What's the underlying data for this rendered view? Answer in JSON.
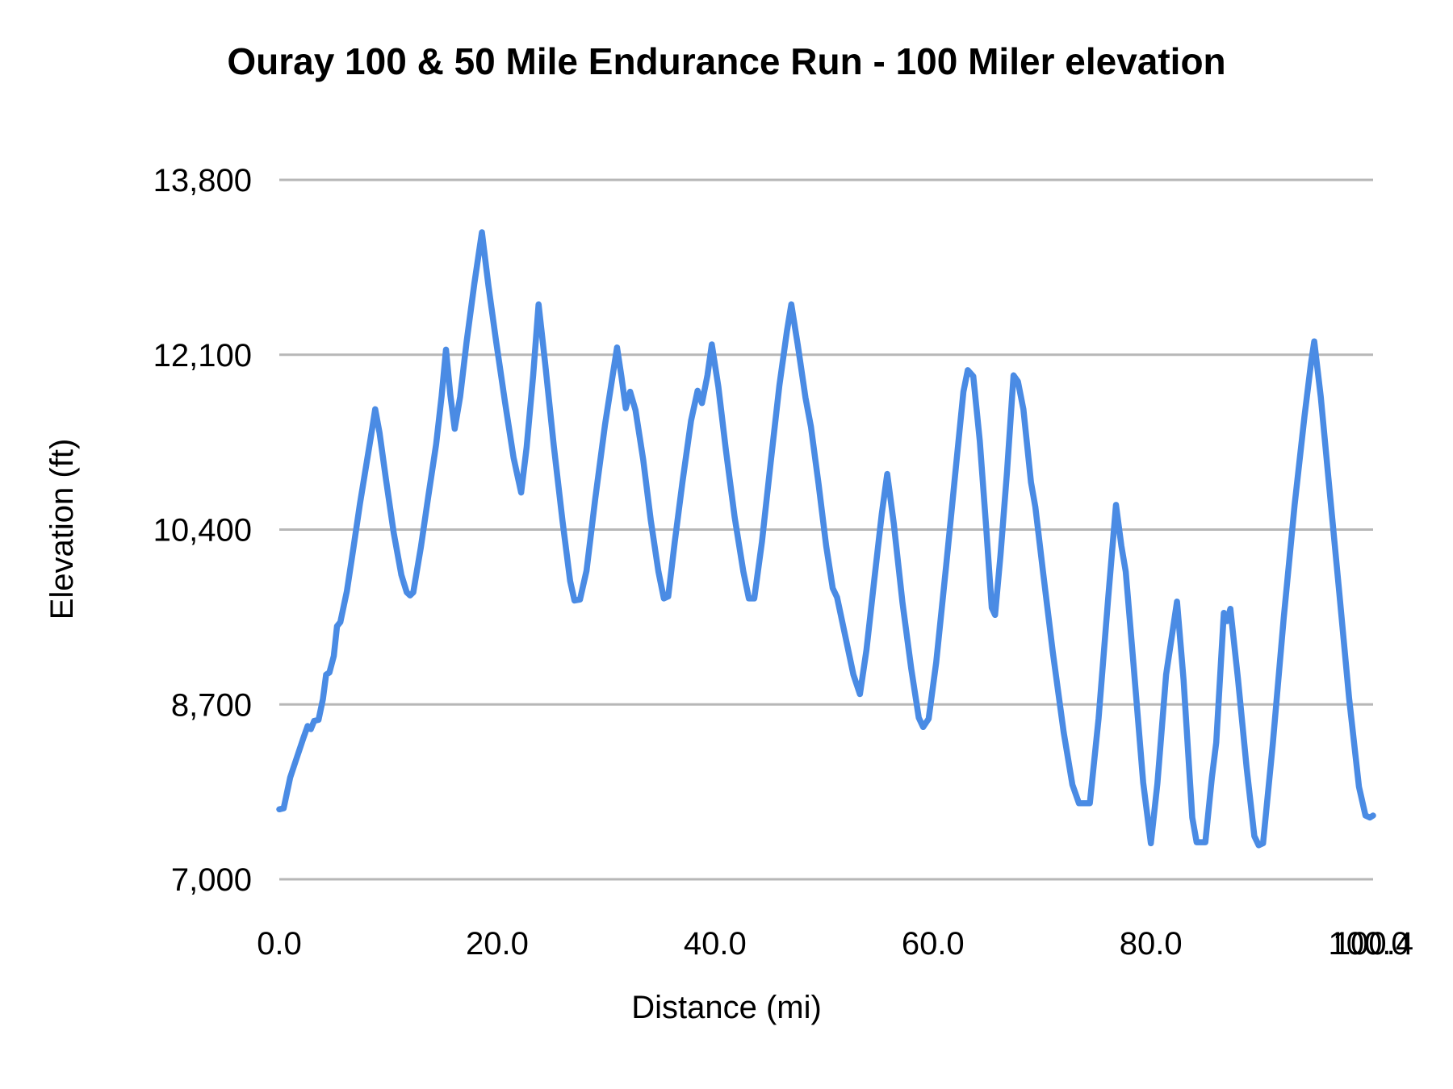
{
  "chart_data": {
    "type": "line",
    "title": "Ouray 100 & 50 Mile Endurance Run - 100 Miler elevation",
    "xlabel": "Distance (mi)",
    "ylabel": "Elevation (ft)",
    "xlim": [
      0,
      100.4
    ],
    "ylim": [
      7000,
      13800
    ],
    "grid": "horizontal",
    "legend": "none",
    "line_color": "#4a8be4",
    "grid_color": "#b7b7b7",
    "text_color": "#000000",
    "yticks": [
      {
        "value": 7000,
        "label": "7,000"
      },
      {
        "value": 8700,
        "label": "8,700"
      },
      {
        "value": 10400,
        "label": "10,400"
      },
      {
        "value": 12100,
        "label": "12,100"
      },
      {
        "value": 13800,
        "label": "13,800"
      }
    ],
    "xticks": [
      {
        "value": 0,
        "label": "0.0"
      },
      {
        "value": 20,
        "label": "20.0"
      },
      {
        "value": 40,
        "label": "40.0"
      },
      {
        "value": 60,
        "label": "60.0"
      },
      {
        "value": 80,
        "label": "80.0"
      },
      {
        "value": 100,
        "label": "100.0"
      },
      {
        "value": 100.4,
        "label": "100.4"
      }
    ],
    "series": [
      {
        "name": "100 Miler elevation",
        "points": [
          [
            0,
            7680
          ],
          [
            0.4,
            7690
          ],
          [
            1,
            7990
          ],
          [
            1.6,
            8180
          ],
          [
            2.2,
            8370
          ],
          [
            2.6,
            8490
          ],
          [
            2.9,
            8460
          ],
          [
            3.2,
            8540
          ],
          [
            3.6,
            8550
          ],
          [
            4,
            8750
          ],
          [
            4.3,
            8990
          ],
          [
            4.6,
            9010
          ],
          [
            5,
            9170
          ],
          [
            5.3,
            9460
          ],
          [
            5.6,
            9500
          ],
          [
            6.2,
            9800
          ],
          [
            6.8,
            10220
          ],
          [
            7.4,
            10650
          ],
          [
            8,
            11040
          ],
          [
            8.4,
            11300
          ],
          [
            8.8,
            11570
          ],
          [
            9.2,
            11340
          ],
          [
            9.8,
            10880
          ],
          [
            10.5,
            10370
          ],
          [
            11.2,
            9960
          ],
          [
            11.7,
            9790
          ],
          [
            12,
            9760
          ],
          [
            12.3,
            9790
          ],
          [
            13,
            10230
          ],
          [
            13.7,
            10740
          ],
          [
            14.4,
            11230
          ],
          [
            14.9,
            11700
          ],
          [
            15.3,
            12150
          ],
          [
            15.7,
            11710
          ],
          [
            16.1,
            11380
          ],
          [
            16.6,
            11690
          ],
          [
            17.2,
            12230
          ],
          [
            17.9,
            12790
          ],
          [
            18.6,
            13290
          ],
          [
            19.2,
            12770
          ],
          [
            19.9,
            12230
          ],
          [
            20.7,
            11650
          ],
          [
            21.5,
            11100
          ],
          [
            22.2,
            10760
          ],
          [
            22.7,
            11200
          ],
          [
            23.3,
            11900
          ],
          [
            23.8,
            12590
          ],
          [
            24.4,
            12020
          ],
          [
            25.2,
            11210
          ],
          [
            26,
            10480
          ],
          [
            26.7,
            9900
          ],
          [
            27.1,
            9710
          ],
          [
            27.6,
            9720
          ],
          [
            28.2,
            10000
          ],
          [
            29,
            10700
          ],
          [
            29.9,
            11420
          ],
          [
            30.6,
            11900
          ],
          [
            31,
            12170
          ],
          [
            31.4,
            11890
          ],
          [
            31.8,
            11580
          ],
          [
            32.2,
            11740
          ],
          [
            32.7,
            11560
          ],
          [
            33.4,
            11080
          ],
          [
            34.1,
            10490
          ],
          [
            34.8,
            9990
          ],
          [
            35.3,
            9730
          ],
          [
            35.7,
            9750
          ],
          [
            36.3,
            10280
          ],
          [
            37,
            10860
          ],
          [
            37.8,
            11460
          ],
          [
            38.4,
            11750
          ],
          [
            38.8,
            11630
          ],
          [
            39.3,
            11900
          ],
          [
            39.7,
            12200
          ],
          [
            40.3,
            11790
          ],
          [
            41,
            11170
          ],
          [
            41.8,
            10520
          ],
          [
            42.6,
            9990
          ],
          [
            43.1,
            9730
          ],
          [
            43.6,
            9730
          ],
          [
            44.3,
            10280
          ],
          [
            45.1,
            11050
          ],
          [
            45.9,
            11800
          ],
          [
            46.6,
            12330
          ],
          [
            47,
            12590
          ],
          [
            47.6,
            12190
          ],
          [
            48.3,
            11680
          ],
          [
            48.8,
            11400
          ],
          [
            49.5,
            10840
          ],
          [
            50.2,
            10240
          ],
          [
            50.8,
            9830
          ],
          [
            51.2,
            9740
          ],
          [
            52,
            9340
          ],
          [
            52.7,
            8990
          ],
          [
            53.3,
            8800
          ],
          [
            53.9,
            9230
          ],
          [
            54.6,
            9900
          ],
          [
            55.3,
            10550
          ],
          [
            55.8,
            10940
          ],
          [
            56.4,
            10460
          ],
          [
            57.2,
            9690
          ],
          [
            58,
            9050
          ],
          [
            58.7,
            8570
          ],
          [
            59.1,
            8480
          ],
          [
            59.6,
            8560
          ],
          [
            60.3,
            9110
          ],
          [
            61.2,
            10040
          ],
          [
            62.1,
            11000
          ],
          [
            62.8,
            11740
          ],
          [
            63.2,
            11950
          ],
          [
            63.7,
            11890
          ],
          [
            64.3,
            11260
          ],
          [
            64.9,
            10400
          ],
          [
            65.4,
            9640
          ],
          [
            65.7,
            9570
          ],
          [
            66.2,
            10150
          ],
          [
            66.8,
            10960
          ],
          [
            67.4,
            11900
          ],
          [
            67.8,
            11840
          ],
          [
            68.3,
            11570
          ],
          [
            69,
            10860
          ],
          [
            69.4,
            10620
          ],
          [
            70.1,
            9990
          ],
          [
            71,
            9210
          ],
          [
            72,
            8430
          ],
          [
            72.8,
            7920
          ],
          [
            73.4,
            7740
          ],
          [
            74.4,
            7740
          ],
          [
            75.2,
            8560
          ],
          [
            76.1,
            9750
          ],
          [
            76.8,
            10640
          ],
          [
            77.3,
            10240
          ],
          [
            77.7,
            9990
          ],
          [
            78.4,
            9100
          ],
          [
            79.3,
            7940
          ],
          [
            80,
            7350
          ],
          [
            80.6,
            7930
          ],
          [
            81.4,
            8990
          ],
          [
            82.4,
            9700
          ],
          [
            83,
            8940
          ],
          [
            83.8,
            7600
          ],
          [
            84.2,
            7360
          ],
          [
            85,
            7360
          ],
          [
            85.6,
            7990
          ],
          [
            86,
            8330
          ],
          [
            86.7,
            9590
          ],
          [
            87,
            9510
          ],
          [
            87.3,
            9630
          ],
          [
            88,
            8950
          ],
          [
            88.8,
            8080
          ],
          [
            89.5,
            7420
          ],
          [
            89.9,
            7330
          ],
          [
            90.3,
            7350
          ],
          [
            91.2,
            8320
          ],
          [
            92.2,
            9540
          ],
          [
            93.2,
            10640
          ],
          [
            94.1,
            11500
          ],
          [
            94.7,
            12020
          ],
          [
            95,
            12230
          ],
          [
            95.6,
            11690
          ],
          [
            96.4,
            10790
          ],
          [
            97.3,
            9780
          ],
          [
            98.2,
            8760
          ],
          [
            99.1,
            7900
          ],
          [
            99.7,
            7620
          ],
          [
            100.1,
            7600
          ],
          [
            100.4,
            7620
          ]
        ]
      }
    ]
  }
}
